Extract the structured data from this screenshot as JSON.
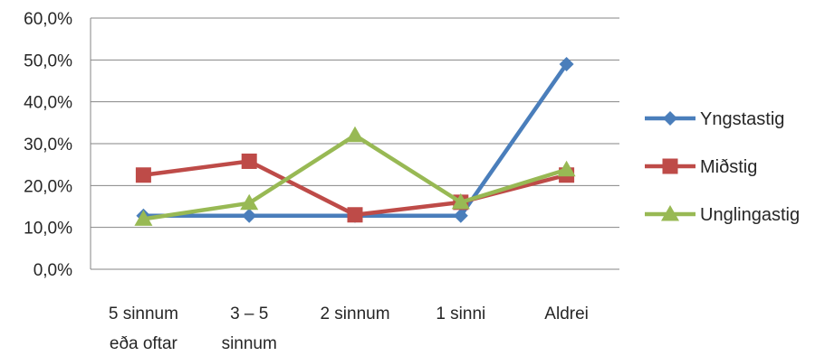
{
  "chart_data": {
    "type": "line",
    "categories": [
      [
        "5 sinnum",
        "eða oftar"
      ],
      [
        "3 – 5",
        "sinnum"
      ],
      [
        "2 sinnum"
      ],
      [
        "1 sinni"
      ],
      [
        "Aldrei"
      ]
    ],
    "y_ticks": [
      "0,0%",
      "10,0%",
      "20,0%",
      "30,0%",
      "40,0%",
      "50,0%",
      "60,0%"
    ],
    "ylim": [
      0,
      60
    ],
    "y_unit": "%",
    "grid": true,
    "legend_position": "right",
    "series": [
      {
        "name": "Yngstastig",
        "color": "#4a7ebb",
        "marker": "diamond",
        "values": [
          12.8,
          12.8,
          12.8,
          12.8,
          49
        ]
      },
      {
        "name": "Miðstig",
        "color": "#be4b48",
        "marker": "square",
        "values": [
          22.5,
          25.8,
          13,
          16,
          22.5
        ]
      },
      {
        "name": "Unglingastig",
        "color": "#98b954",
        "marker": "triangle",
        "values": [
          12,
          15.8,
          32,
          16,
          23.8
        ]
      }
    ]
  }
}
